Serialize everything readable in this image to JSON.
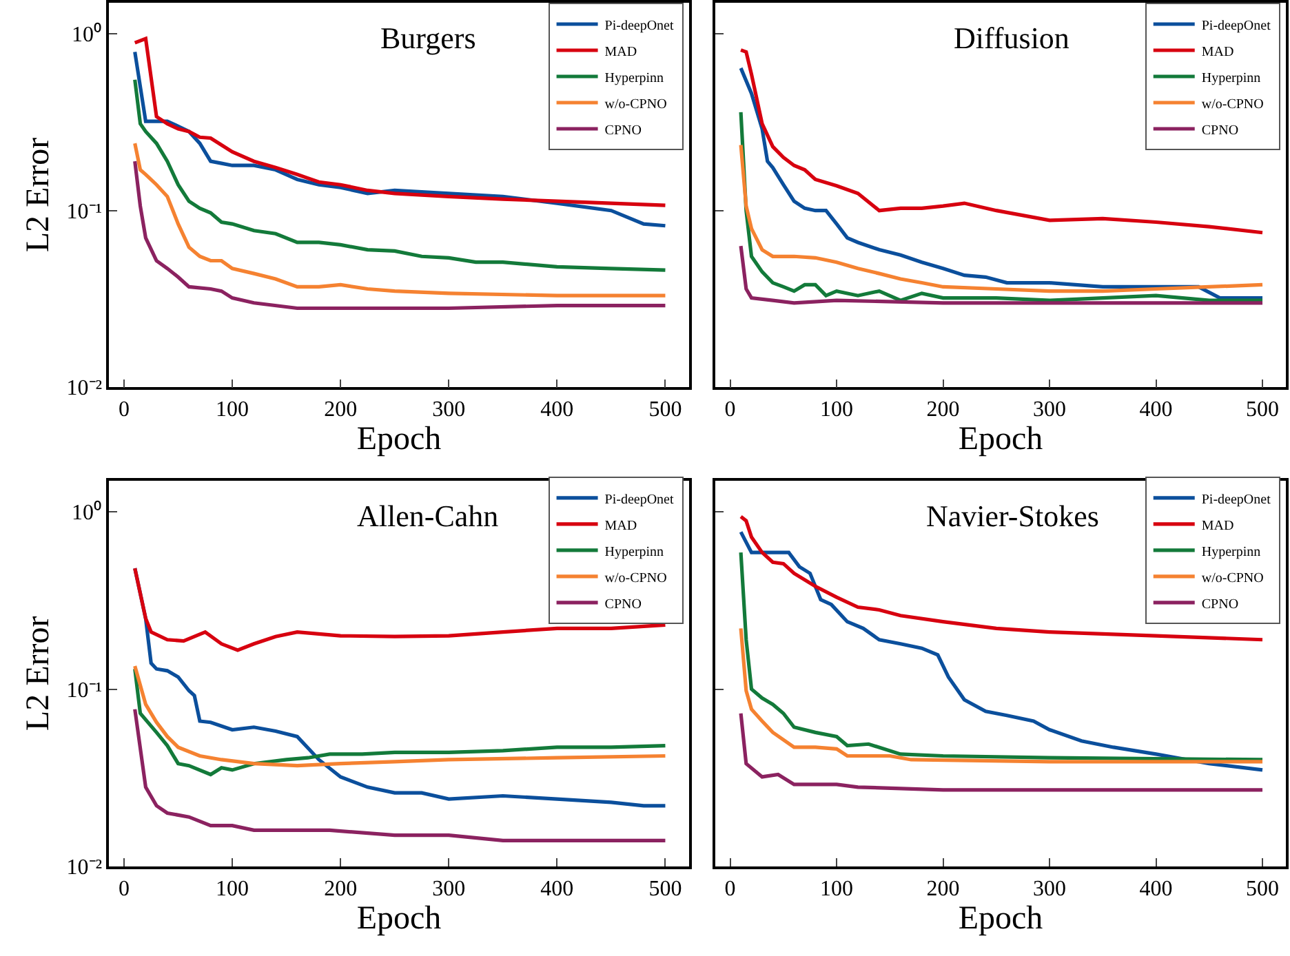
{
  "chart_data": [
    {
      "type": "line",
      "title": "Burgers",
      "xlabel": "Epoch",
      "ylabel": "L2 Error",
      "log": true,
      "legend": "top right",
      "grid": false,
      "xlim": [
        -14,
        522
      ],
      "ylim": [
        0.01,
        1.5
      ],
      "xticks": [
        0,
        100,
        200,
        300,
        400,
        500
      ],
      "yticks": [
        {
          "value": 1,
          "label": "10⁰"
        },
        {
          "value": 0.1,
          "label": "10⁻¹"
        },
        {
          "value": 0.01,
          "label": "10⁻²"
        }
      ],
      "series": [
        {
          "name": "Pi-deepOnet",
          "color": "#0b4f9c",
          "x": [
            10,
            20,
            30,
            40,
            50,
            60,
            70,
            80,
            90,
            100,
            120,
            140,
            160,
            180,
            200,
            225,
            250,
            300,
            350,
            400,
            450,
            480,
            500
          ],
          "values": [
            0.79,
            0.32,
            0.32,
            0.32,
            0.3,
            0.28,
            0.24,
            0.19,
            0.185,
            0.18,
            0.18,
            0.17,
            0.15,
            0.14,
            0.135,
            0.125,
            0.13,
            0.125,
            0.12,
            0.11,
            0.1,
            0.084,
            0.082
          ]
        },
        {
          "name": "MAD",
          "color": "#d7000f",
          "x": [
            10,
            20,
            30,
            40,
            50,
            60,
            70,
            80,
            90,
            100,
            120,
            140,
            160,
            180,
            200,
            225,
            250,
            300,
            350,
            400,
            450,
            500
          ],
          "values": [
            0.89,
            0.94,
            0.34,
            0.31,
            0.29,
            0.28,
            0.26,
            0.257,
            0.235,
            0.215,
            0.19,
            0.175,
            0.16,
            0.145,
            0.14,
            0.13,
            0.125,
            0.12,
            0.116,
            0.113,
            0.11,
            0.107
          ]
        },
        {
          "name": "Hyperpinn",
          "color": "#137a3a",
          "x": [
            10,
            15,
            20,
            30,
            40,
            50,
            60,
            70,
            80,
            90,
            100,
            120,
            140,
            160,
            180,
            200,
            225,
            250,
            275,
            300,
            325,
            350,
            400,
            450,
            500
          ],
          "values": [
            0.55,
            0.31,
            0.28,
            0.24,
            0.19,
            0.14,
            0.113,
            0.103,
            0.097,
            0.086,
            0.084,
            0.077,
            0.074,
            0.066,
            0.066,
            0.064,
            0.06,
            0.059,
            0.055,
            0.054,
            0.051,
            0.051,
            0.048,
            0.047,
            0.046
          ]
        },
        {
          "name": "w/o-CPNO",
          "color": "#f58231",
          "x": [
            10,
            15,
            20,
            30,
            40,
            50,
            60,
            70,
            80,
            90,
            100,
            120,
            140,
            160,
            180,
            200,
            225,
            250,
            300,
            400,
            500
          ],
          "values": [
            0.24,
            0.17,
            0.16,
            0.14,
            0.12,
            0.084,
            0.062,
            0.055,
            0.052,
            0.052,
            0.047,
            0.044,
            0.041,
            0.037,
            0.037,
            0.038,
            0.036,
            0.035,
            0.034,
            0.033,
            0.033
          ]
        },
        {
          "name": "CPNO",
          "color": "#8b2260",
          "x": [
            10,
            15,
            20,
            30,
            40,
            50,
            60,
            80,
            90,
            100,
            120,
            160,
            200,
            300,
            400,
            500
          ],
          "values": [
            0.19,
            0.106,
            0.07,
            0.052,
            0.047,
            0.042,
            0.037,
            0.036,
            0.035,
            0.032,
            0.03,
            0.028,
            0.028,
            0.028,
            0.029,
            0.029
          ]
        }
      ]
    },
    {
      "type": "line",
      "title": "Diffusion",
      "xlabel": "Epoch",
      "log": true,
      "legend": "top right",
      "grid": false,
      "tick_labels": "x",
      "xlim": [
        -14,
        522
      ],
      "ylim": [
        0.01,
        1.5
      ],
      "xticks": [
        0,
        100,
        200,
        300,
        400,
        500
      ],
      "yticks": [
        {
          "value": 1,
          "label": null
        },
        {
          "value": 0.1,
          "label": null
        },
        {
          "value": 0.01,
          "label": null
        }
      ],
      "series": [
        {
          "name": "Pi-deepOnet",
          "color": "#0b4f9c",
          "x": [
            10,
            20,
            30,
            35,
            40,
            50,
            60,
            70,
            80,
            90,
            100,
            110,
            120,
            140,
            160,
            180,
            200,
            220,
            240,
            260,
            300,
            350,
            400,
            440,
            460,
            500
          ],
          "values": [
            0.64,
            0.46,
            0.29,
            0.19,
            0.175,
            0.14,
            0.113,
            0.103,
            0.1,
            0.1,
            0.084,
            0.07,
            0.066,
            0.06,
            0.056,
            0.051,
            0.047,
            0.043,
            0.042,
            0.039,
            0.039,
            0.037,
            0.037,
            0.037,
            0.032,
            0.032
          ]
        },
        {
          "name": "MAD",
          "color": "#d7000f",
          "x": [
            10,
            15,
            20,
            30,
            40,
            50,
            60,
            70,
            80,
            100,
            120,
            140,
            160,
            180,
            200,
            220,
            250,
            300,
            350,
            400,
            450,
            500
          ],
          "values": [
            0.81,
            0.79,
            0.59,
            0.31,
            0.23,
            0.2,
            0.18,
            0.17,
            0.15,
            0.138,
            0.125,
            0.1,
            0.103,
            0.103,
            0.106,
            0.11,
            0.1,
            0.088,
            0.09,
            0.086,
            0.081,
            0.075
          ]
        },
        {
          "name": "Hyperpinn",
          "color": "#137a3a",
          "x": [
            10,
            15,
            20,
            30,
            40,
            50,
            60,
            70,
            80,
            90,
            100,
            120,
            140,
            160,
            180,
            200,
            250,
            300,
            350,
            400,
            450,
            500
          ],
          "values": [
            0.36,
            0.1,
            0.055,
            0.045,
            0.039,
            0.037,
            0.035,
            0.038,
            0.038,
            0.033,
            0.035,
            0.033,
            0.035,
            0.031,
            0.034,
            0.032,
            0.032,
            0.031,
            0.032,
            0.033,
            0.031,
            0.031
          ]
        },
        {
          "name": "w/o-CPNO",
          "color": "#f58231",
          "x": [
            10,
            15,
            20,
            30,
            40,
            60,
            80,
            100,
            120,
            140,
            160,
            180,
            200,
            250,
            300,
            350,
            400,
            450,
            500
          ],
          "values": [
            0.235,
            0.106,
            0.079,
            0.06,
            0.055,
            0.055,
            0.054,
            0.051,
            0.047,
            0.044,
            0.041,
            0.039,
            0.037,
            0.036,
            0.035,
            0.035,
            0.036,
            0.037,
            0.038
          ]
        },
        {
          "name": "CPNO",
          "color": "#8b2260",
          "x": [
            10,
            15,
            20,
            40,
            60,
            100,
            200,
            300,
            500
          ],
          "values": [
            0.063,
            0.036,
            0.032,
            0.031,
            0.03,
            0.031,
            0.03,
            0.03,
            0.03
          ]
        }
      ]
    },
    {
      "type": "line",
      "title": "Allen-Cahn",
      "xlabel": "Epoch",
      "ylabel": "L2 Error",
      "log": true,
      "legend": "top right",
      "grid": false,
      "xlim": [
        -14,
        522
      ],
      "ylim": [
        0.01,
        1.5
      ],
      "xticks": [
        0,
        100,
        200,
        300,
        400,
        500
      ],
      "yticks": [
        {
          "value": 1,
          "label": "10⁰"
        },
        {
          "value": 0.1,
          "label": "10⁻¹"
        },
        {
          "value": 0.01,
          "label": "10⁻²"
        }
      ],
      "series": [
        {
          "name": "Pi-deepOnet",
          "color": "#0b4f9c",
          "x": [
            10,
            20,
            25,
            30,
            40,
            50,
            60,
            65,
            70,
            80,
            100,
            120,
            140,
            160,
            180,
            200,
            225,
            250,
            275,
            300,
            350,
            400,
            450,
            480,
            500
          ],
          "values": [
            0.48,
            0.25,
            0.14,
            0.13,
            0.127,
            0.117,
            0.098,
            0.092,
            0.066,
            0.065,
            0.059,
            0.061,
            0.058,
            0.054,
            0.04,
            0.032,
            0.028,
            0.026,
            0.026,
            0.024,
            0.025,
            0.024,
            0.023,
            0.022,
            0.022
          ]
        },
        {
          "name": "MAD",
          "color": "#d7000f",
          "x": [
            10,
            20,
            25,
            40,
            55,
            65,
            75,
            90,
            105,
            120,
            140,
            160,
            200,
            250,
            300,
            350,
            400,
            450,
            500
          ],
          "values": [
            0.48,
            0.25,
            0.21,
            0.19,
            0.187,
            0.198,
            0.21,
            0.18,
            0.166,
            0.18,
            0.198,
            0.21,
            0.2,
            0.198,
            0.2,
            0.21,
            0.22,
            0.22,
            0.23
          ]
        },
        {
          "name": "Hyperpinn",
          "color": "#137a3a",
          "x": [
            10,
            15,
            30,
            40,
            50,
            60,
            80,
            90,
            100,
            120,
            150,
            170,
            190,
            220,
            250,
            300,
            350,
            400,
            450,
            500
          ],
          "values": [
            0.13,
            0.073,
            0.057,
            0.048,
            0.038,
            0.037,
            0.033,
            0.036,
            0.035,
            0.038,
            0.04,
            0.041,
            0.043,
            0.043,
            0.044,
            0.044,
            0.045,
            0.047,
            0.047,
            0.048
          ]
        },
        {
          "name": "w/o-CPNO",
          "color": "#f58231",
          "x": [
            10,
            20,
            30,
            40,
            50,
            70,
            90,
            120,
            160,
            200,
            250,
            300,
            400,
            500
          ],
          "values": [
            0.135,
            0.082,
            0.065,
            0.054,
            0.047,
            0.042,
            0.04,
            0.038,
            0.037,
            0.038,
            0.039,
            0.04,
            0.041,
            0.042
          ]
        },
        {
          "name": "CPNO",
          "color": "#8b2260",
          "x": [
            10,
            20,
            30,
            40,
            60,
            80,
            100,
            120,
            150,
            190,
            250,
            300,
            350,
            400,
            450,
            500
          ],
          "values": [
            0.077,
            0.028,
            0.022,
            0.02,
            0.019,
            0.017,
            0.017,
            0.016,
            0.016,
            0.016,
            0.015,
            0.015,
            0.014,
            0.014,
            0.014,
            0.014
          ]
        }
      ]
    },
    {
      "type": "line",
      "title": "Navier-Stokes",
      "xlabel": "Epoch",
      "log": true,
      "legend": "top right",
      "grid": false,
      "tick_labels": "x",
      "xlim": [
        -14,
        522
      ],
      "ylim": [
        0.01,
        1.5
      ],
      "xticks": [
        0,
        100,
        200,
        300,
        400,
        500
      ],
      "yticks": [
        {
          "value": 1,
          "label": null
        },
        {
          "value": 0.1,
          "label": null
        },
        {
          "value": 0.01,
          "label": null
        }
      ],
      "series": [
        {
          "name": "Pi-deepOnet",
          "color": "#0b4f9c",
          "x": [
            10,
            20,
            30,
            55,
            65,
            75,
            85,
            95,
            110,
            125,
            140,
            160,
            180,
            195,
            205,
            220,
            240,
            260,
            285,
            300,
            330,
            360,
            400,
            450,
            500
          ],
          "values": [
            0.77,
            0.59,
            0.59,
            0.59,
            0.49,
            0.45,
            0.32,
            0.3,
            0.24,
            0.22,
            0.19,
            0.18,
            0.17,
            0.156,
            0.117,
            0.087,
            0.075,
            0.071,
            0.066,
            0.059,
            0.051,
            0.047,
            0.043,
            0.038,
            0.035
          ]
        },
        {
          "name": "MAD",
          "color": "#d7000f",
          "x": [
            10,
            15,
            20,
            30,
            40,
            50,
            60,
            80,
            100,
            120,
            140,
            160,
            200,
            250,
            300,
            400,
            500
          ],
          "values": [
            0.94,
            0.89,
            0.72,
            0.59,
            0.52,
            0.51,
            0.45,
            0.38,
            0.33,
            0.29,
            0.28,
            0.26,
            0.24,
            0.22,
            0.21,
            0.2,
            0.19
          ]
        },
        {
          "name": "Hyperpinn",
          "color": "#137a3a",
          "x": [
            10,
            15,
            20,
            30,
            40,
            50,
            60,
            80,
            100,
            110,
            130,
            160,
            200,
            300,
            500
          ],
          "values": [
            0.59,
            0.19,
            0.1,
            0.089,
            0.082,
            0.073,
            0.061,
            0.057,
            0.054,
            0.048,
            0.049,
            0.043,
            0.042,
            0.041,
            0.04
          ]
        },
        {
          "name": "w/o-CPNO",
          "color": "#f58231",
          "x": [
            10,
            15,
            20,
            30,
            40,
            60,
            80,
            100,
            110,
            150,
            170,
            300,
            500
          ],
          "values": [
            0.22,
            0.098,
            0.077,
            0.066,
            0.057,
            0.047,
            0.047,
            0.046,
            0.042,
            0.042,
            0.04,
            0.039,
            0.039
          ]
        },
        {
          "name": "CPNO",
          "color": "#8b2260",
          "x": [
            10,
            15,
            30,
            45,
            60,
            100,
            120,
            200,
            500
          ],
          "values": [
            0.073,
            0.038,
            0.032,
            0.033,
            0.029,
            0.029,
            0.028,
            0.027,
            0.027
          ]
        }
      ]
    }
  ]
}
